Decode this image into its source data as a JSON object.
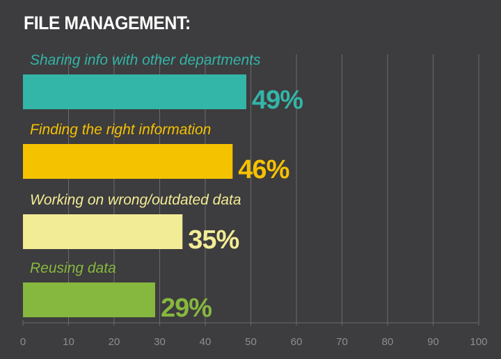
{
  "title": "FILE MANAGEMENT:",
  "chart_data": {
    "type": "bar",
    "orientation": "horizontal",
    "categories": [
      "Sharing info with other departments",
      "Finding the right information",
      "Working on wrong/outdated data",
      "Reusing data"
    ],
    "values": [
      49,
      46,
      35,
      29
    ],
    "value_labels": [
      "49%",
      "46%",
      "35%",
      "29%"
    ],
    "colors": [
      "#33b5a8",
      "#f5c200",
      "#f2ec96",
      "#86b83f"
    ],
    "label_colors": [
      "#33b5a8",
      "#f5c200",
      "#f2ec96",
      "#86b83f"
    ],
    "xlim": [
      0,
      100
    ],
    "xticks": [
      0,
      10,
      20,
      30,
      40,
      50,
      60,
      70,
      80,
      90,
      100
    ],
    "xlabel": "",
    "ylabel": "",
    "grid": true,
    "legend": "none"
  },
  "colors": {
    "background": "#3d3c3e",
    "gridline": "#6b6b6c",
    "tick_text": "#8e8e8e",
    "title": "#ffffff"
  }
}
